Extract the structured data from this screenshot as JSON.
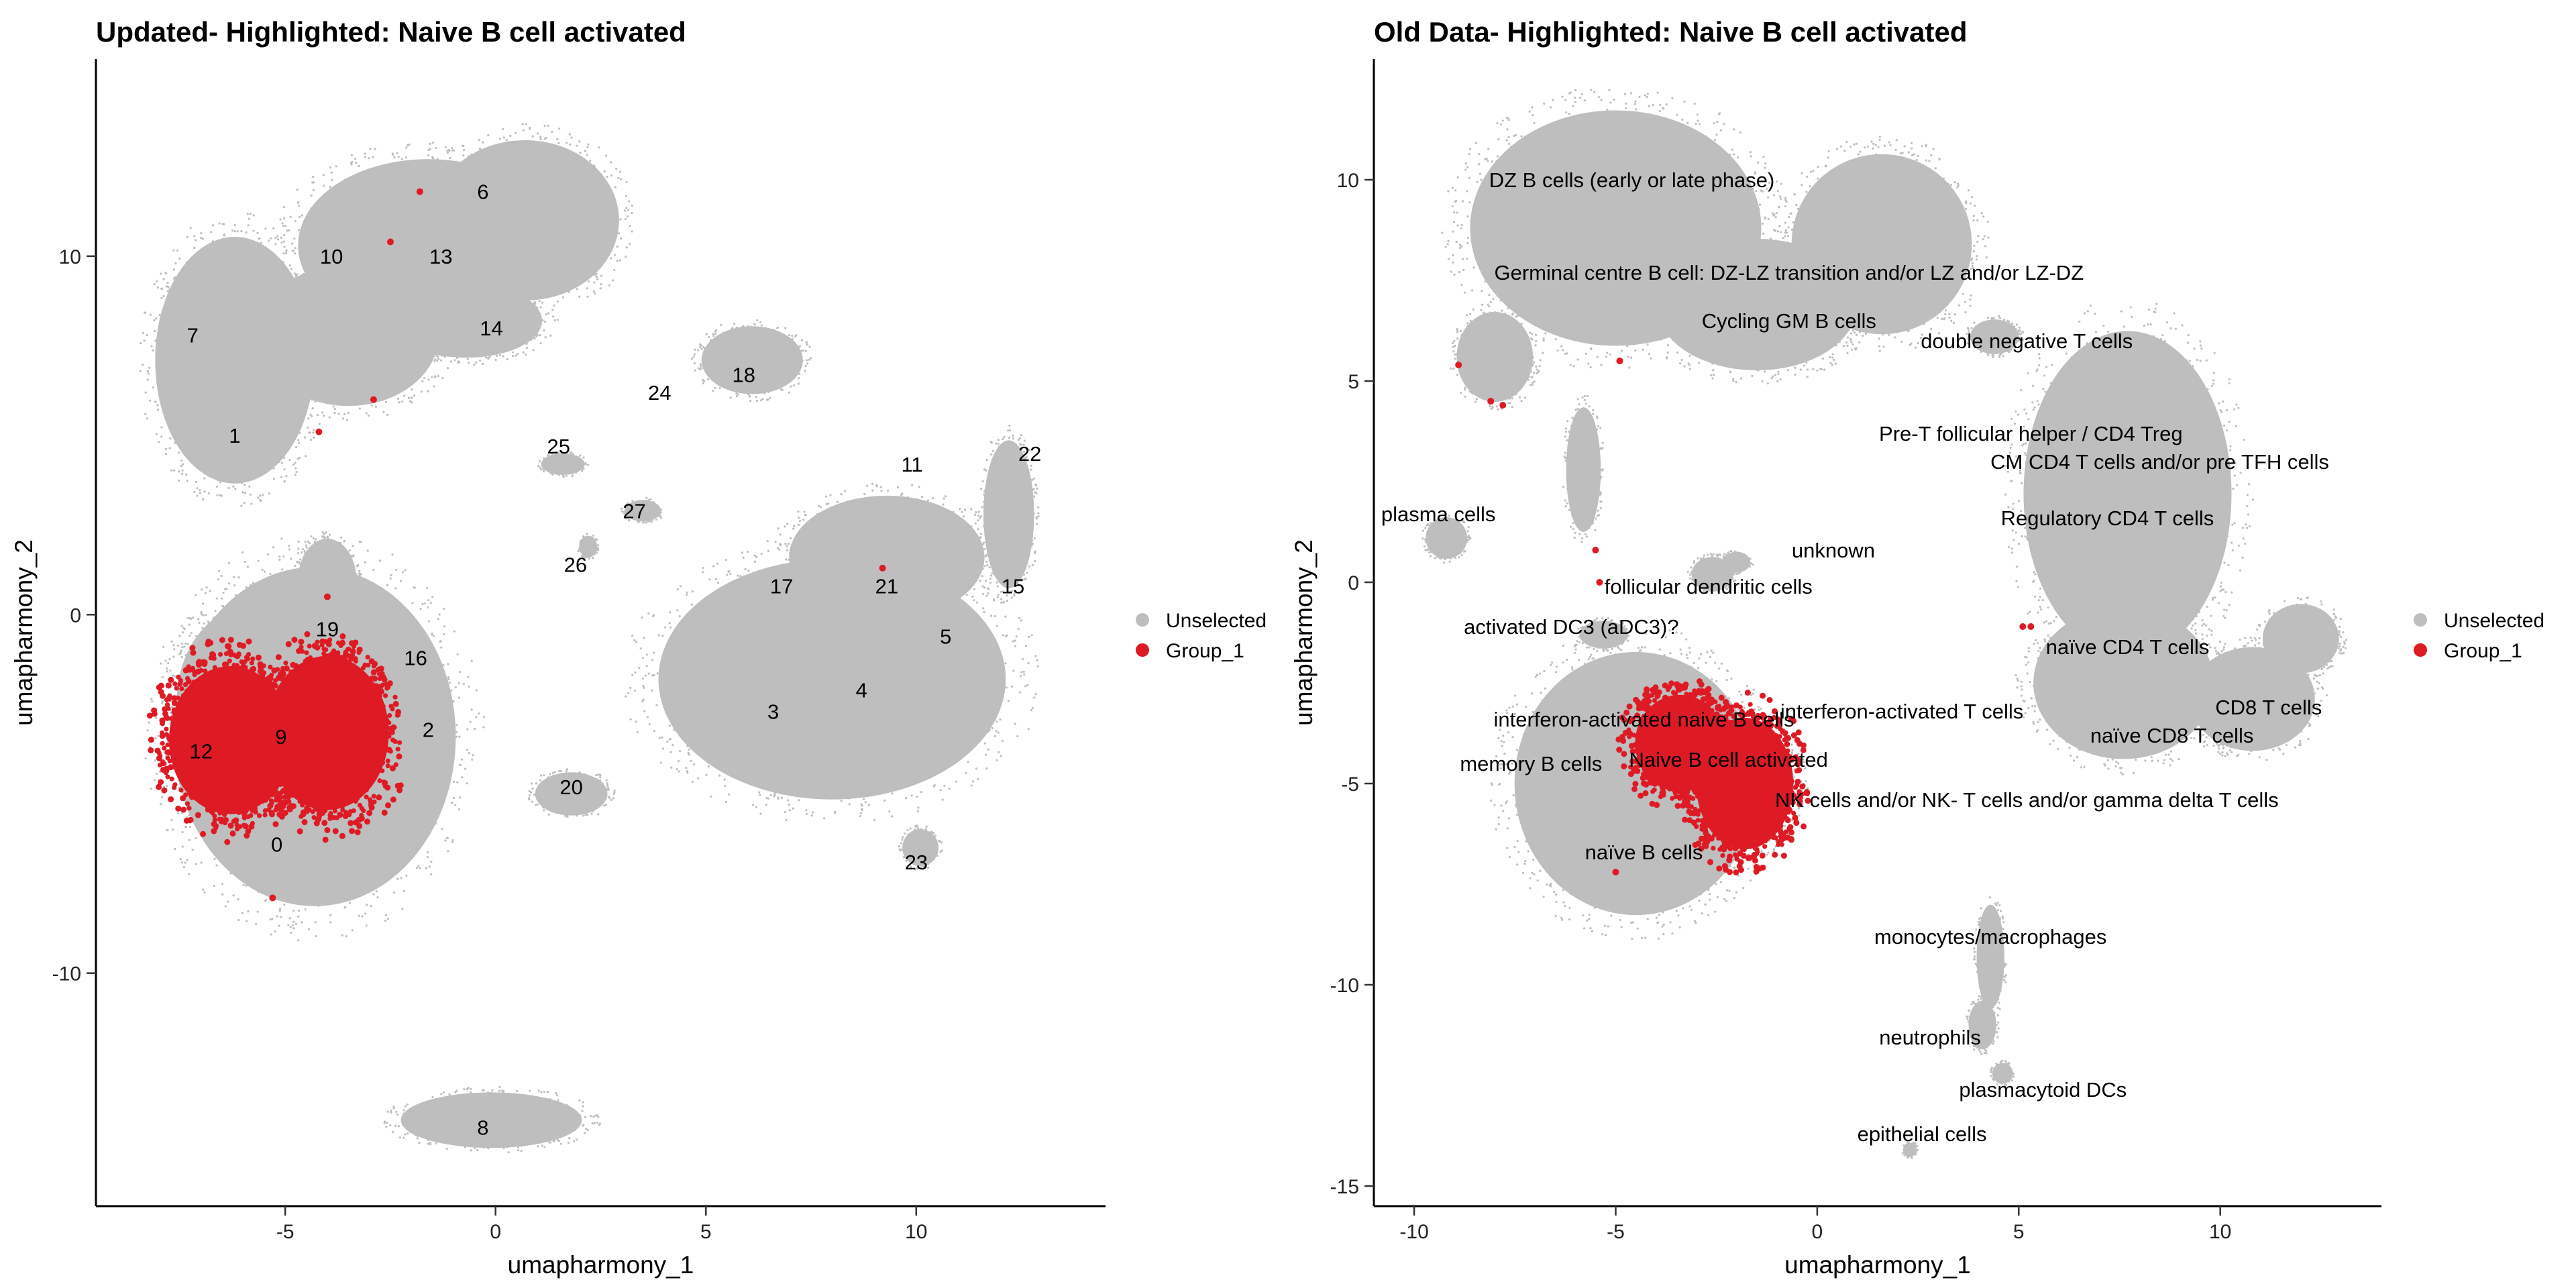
{
  "colors": {
    "unselected": "#BEBEBE",
    "group_1": "#DE1A24"
  },
  "legend": {
    "placement": "right",
    "items": [
      {
        "label": "Unselected",
        "color": "#BEBEBE"
      },
      {
        "label": "Group_1",
        "color": "#DE1A24"
      }
    ]
  },
  "chart_data": [
    {
      "type": "scatter",
      "title": "Updated- Highlighted: Naive B cell activated",
      "xlabel": "umapharmony_1",
      "ylabel": "umapharmony_2",
      "xlim": [
        -9.5,
        14.5
      ],
      "ylim": [
        -16.5,
        15.5
      ],
      "xticks": [
        -5,
        0,
        5,
        10
      ],
      "yticks": [
        -10,
        0,
        10
      ],
      "grid": false,
      "series": [
        {
          "name": "Unselected",
          "color": "#BEBEBE",
          "regions": [
            {
              "cx": -4.3,
              "cy": -3.4,
              "rx": 3.9,
              "ry": 5.5
            },
            {
              "cx": -5.6,
              "cy": -2.4,
              "rx": 2.3,
              "ry": 3.2
            },
            {
              "cx": -6.2,
              "cy": 7.1,
              "rx": 2.2,
              "ry": 4.0
            },
            {
              "cx": -3.5,
              "cy": 7.8,
              "rx": 2.5,
              "ry": 2.3
            },
            {
              "cx": -1.6,
              "cy": 10.3,
              "rx": 3.6,
              "ry": 2.8
            },
            {
              "cx": 0.7,
              "cy": 11.0,
              "rx": 2.6,
              "ry": 2.6
            },
            {
              "cx": -0.7,
              "cy": 8.2,
              "rx": 2.1,
              "ry": 1.2
            },
            {
              "cx": -4.0,
              "cy": 1.0,
              "rx": 0.8,
              "ry": 1.3
            },
            {
              "cx": 8.0,
              "cy": -1.8,
              "rx": 4.8,
              "ry": 3.9
            },
            {
              "cx": 9.3,
              "cy": 1.6,
              "rx": 2.7,
              "ry": 2.0
            },
            {
              "cx": 12.2,
              "cy": 2.8,
              "rx": 0.7,
              "ry": 2.4
            },
            {
              "cx": -0.1,
              "cy": -14.1,
              "rx": 2.5,
              "ry": 0.9
            },
            {
              "cx": 6.1,
              "cy": 7.1,
              "rx": 1.4,
              "ry": 1.1
            },
            {
              "cx": 1.8,
              "cy": -5.0,
              "rx": 1.0,
              "ry": 0.7
            },
            {
              "cx": 10.1,
              "cy": -6.5,
              "rx": 0.5,
              "ry": 0.6
            },
            {
              "cx": 1.6,
              "cy": 4.2,
              "rx": 0.6,
              "ry": 0.35
            },
            {
              "cx": 3.5,
              "cy": 2.9,
              "rx": 0.5,
              "ry": 0.35
            },
            {
              "cx": 2.2,
              "cy": 1.9,
              "rx": 0.25,
              "ry": 0.35
            }
          ]
        },
        {
          "name": "Group_1",
          "color": "#DE1A24",
          "regions": [
            {
              "cx": -6.3,
              "cy": -3.5,
              "rx": 1.7,
              "ry": 2.4
            },
            {
              "cx": -4.0,
              "cy": -3.3,
              "rx": 1.7,
              "ry": 2.5
            }
          ],
          "points": [
            [
              -1.8,
              11.8
            ],
            [
              -2.5,
              10.4
            ],
            [
              -2.9,
              6.0
            ],
            [
              -4.2,
              5.1
            ],
            [
              9.2,
              1.3
            ],
            [
              -5.3,
              -7.9
            ],
            [
              -4.0,
              0.5
            ]
          ]
        }
      ],
      "annotations": [
        {
          "text": "6",
          "x": -0.3,
          "y": 11.8
        },
        {
          "text": "10",
          "x": -3.9,
          "y": 10.0
        },
        {
          "text": "13",
          "x": -1.3,
          "y": 10.0
        },
        {
          "text": "14",
          "x": -0.1,
          "y": 8.0
        },
        {
          "text": "7",
          "x": -7.2,
          "y": 7.8
        },
        {
          "text": "1",
          "x": -6.2,
          "y": 5.0
        },
        {
          "text": "24",
          "x": 3.9,
          "y": 6.2
        },
        {
          "text": "18",
          "x": 5.9,
          "y": 6.7
        },
        {
          "text": "25",
          "x": 1.5,
          "y": 4.7
        },
        {
          "text": "27",
          "x": 3.3,
          "y": 2.9
        },
        {
          "text": "26",
          "x": 1.9,
          "y": 1.4
        },
        {
          "text": "11",
          "x": 9.9,
          "y": 4.2
        },
        {
          "text": "22",
          "x": 12.7,
          "y": 4.5
        },
        {
          "text": "17",
          "x": 6.8,
          "y": 0.8
        },
        {
          "text": "21",
          "x": 9.3,
          "y": 0.8
        },
        {
          "text": "15",
          "x": 12.3,
          "y": 0.8
        },
        {
          "text": "5",
          "x": 10.7,
          "y": -0.6
        },
        {
          "text": "4",
          "x": 8.7,
          "y": -2.1
        },
        {
          "text": "3",
          "x": 6.6,
          "y": -2.7
        },
        {
          "text": "19",
          "x": -4.0,
          "y": -0.4
        },
        {
          "text": "16",
          "x": -1.9,
          "y": -1.2
        },
        {
          "text": "2",
          "x": -1.6,
          "y": -3.2
        },
        {
          "text": "12",
          "x": -7.0,
          "y": -3.8
        },
        {
          "text": "9",
          "x": -5.1,
          "y": -3.4
        },
        {
          "text": "0",
          "x": -5.2,
          "y": -6.4
        },
        {
          "text": "20",
          "x": 1.8,
          "y": -4.8
        },
        {
          "text": "23",
          "x": 10.0,
          "y": -6.9
        },
        {
          "text": "8",
          "x": -0.3,
          "y": -14.3
        }
      ]
    },
    {
      "type": "scatter",
      "title": "Old Data- Highlighted: Naive B cell activated",
      "xlabel": "umapharmony_1",
      "ylabel": "umapharmony_2",
      "xlim": [
        -11,
        14
      ],
      "ylim": [
        -15.5,
        13
      ],
      "xticks": [
        -10,
        -5,
        0,
        5,
        10
      ],
      "yticks": [
        -15,
        -10,
        -5,
        0,
        5,
        10
      ],
      "grid": false,
      "series": [
        {
          "name": "Unselected",
          "color": "#BEBEBE",
          "regions": [
            {
              "cx": -5.0,
              "cy": 8.8,
              "rx": 4.2,
              "ry": 3.4
            },
            {
              "cx": -1.5,
              "cy": 6.9,
              "rx": 2.9,
              "ry": 1.9
            },
            {
              "cx": 1.6,
              "cy": 8.4,
              "rx": 2.6,
              "ry": 2.6
            },
            {
              "cx": -8.0,
              "cy": 5.6,
              "rx": 1.1,
              "ry": 1.3
            },
            {
              "cx": -5.8,
              "cy": 2.8,
              "rx": 0.5,
              "ry": 1.8
            },
            {
              "cx": -4.5,
              "cy": -5.0,
              "rx": 3.5,
              "ry": 3.8
            },
            {
              "cx": -2.3,
              "cy": -5.0,
              "rx": 2.0,
              "ry": 2.0
            },
            {
              "cx": 7.7,
              "cy": 2.2,
              "rx": 3.0,
              "ry": 4.7
            },
            {
              "cx": 7.6,
              "cy": -2.5,
              "rx": 2.6,
              "ry": 2.2
            },
            {
              "cx": 10.8,
              "cy": -2.9,
              "rx": 1.8,
              "ry": 1.5
            },
            {
              "cx": 12.0,
              "cy": -1.4,
              "rx": 1.1,
              "ry": 1.0
            },
            {
              "cx": 4.4,
              "cy": 6.1,
              "rx": 0.7,
              "ry": 0.5
            },
            {
              "cx": -9.2,
              "cy": 1.1,
              "rx": 0.6,
              "ry": 0.6
            },
            {
              "cx": -2.6,
              "cy": 0.2,
              "rx": 0.6,
              "ry": 0.5
            },
            {
              "cx": -2.0,
              "cy": 0.5,
              "rx": 0.4,
              "ry": 0.3
            },
            {
              "cx": -5.3,
              "cy": -1.3,
              "rx": 0.7,
              "ry": 0.4
            },
            {
              "cx": 4.3,
              "cy": -9.3,
              "rx": 0.4,
              "ry": 1.5
            },
            {
              "cx": 4.1,
              "cy": -11.0,
              "rx": 0.4,
              "ry": 0.7
            },
            {
              "cx": 4.6,
              "cy": -12.2,
              "rx": 0.3,
              "ry": 0.3
            },
            {
              "cx": 2.3,
              "cy": -14.1,
              "rx": 0.2,
              "ry": 0.2
            }
          ]
        },
        {
          "name": "Group_1",
          "color": "#DE1A24",
          "regions": [
            {
              "cx": -1.8,
              "cy": -5.0,
              "rx": 1.4,
              "ry": 1.9
            },
            {
              "cx": -3.4,
              "cy": -4.0,
              "rx": 1.3,
              "ry": 1.4
            }
          ],
          "points": [
            [
              -8.9,
              5.4
            ],
            [
              -8.1,
              4.5
            ],
            [
              -7.8,
              4.4
            ],
            [
              -4.9,
              5.5
            ],
            [
              -5.5,
              0.8
            ],
            [
              -5.4,
              0.0
            ],
            [
              5.1,
              -1.1
            ],
            [
              5.3,
              -1.1
            ],
            [
              -5.0,
              -7.2
            ]
          ]
        }
      ],
      "annotations": [
        {
          "text": "DZ B cells (early or late phase)",
          "x": -4.6,
          "y": 10.0
        },
        {
          "text": "Germinal centre B cell: DZ-LZ transition and/or LZ and/or LZ-DZ",
          "x": -0.7,
          "y": 7.7
        },
        {
          "text": "Cycling GM B cells",
          "x": -0.7,
          "y": 6.5
        },
        {
          "text": "double negative T cells",
          "x": 5.2,
          "y": 6.0
        },
        {
          "text": "Pre-T follicular helper / CD4 Treg",
          "x": 5.3,
          "y": 3.7
        },
        {
          "text": "CM CD4 T cells  and/or pre TFH cells",
          "x": 8.5,
          "y": 3.0
        },
        {
          "text": "Regulatory CD4 T cells",
          "x": 7.2,
          "y": 1.6
        },
        {
          "text": "plasma cells",
          "x": -9.4,
          "y": 1.7
        },
        {
          "text": "unknown",
          "x": 0.4,
          "y": 0.8
        },
        {
          "text": "follicular dendritic cells",
          "x": -2.7,
          "y": -0.1
        },
        {
          "text": "activated DC3 (aDC3)?",
          "x": -6.1,
          "y": -1.1
        },
        {
          "text": "naïve CD4 T cells",
          "x": 7.7,
          "y": -1.6
        },
        {
          "text": "interferon-activated naive B cells",
          "x": -4.3,
          "y": -3.4
        },
        {
          "text": "interferon-activated T cells",
          "x": 2.1,
          "y": -3.2
        },
        {
          "text": "CD8 T cells",
          "x": 11.2,
          "y": -3.1
        },
        {
          "text": "naïve CD8 T cells",
          "x": 8.8,
          "y": -3.8
        },
        {
          "text": "memory B cells",
          "x": -7.1,
          "y": -4.5
        },
        {
          "text": "Naive B cell activated",
          "x": -2.2,
          "y": -4.4
        },
        {
          "text": "NK cells and/or NK- T cells and/or gamma delta T cells",
          "x": 5.2,
          "y": -5.4
        },
        {
          "text": "naïve B cells",
          "x": -4.3,
          "y": -6.7
        },
        {
          "text": "monocytes/macrophages",
          "x": 4.3,
          "y": -8.8
        },
        {
          "text": "neutrophils",
          "x": 2.8,
          "y": -11.3
        },
        {
          "text": "plasmacytoid DCs",
          "x": 5.6,
          "y": -12.6
        },
        {
          "text": "epithelial cells",
          "x": 2.6,
          "y": -13.7
        }
      ]
    }
  ]
}
